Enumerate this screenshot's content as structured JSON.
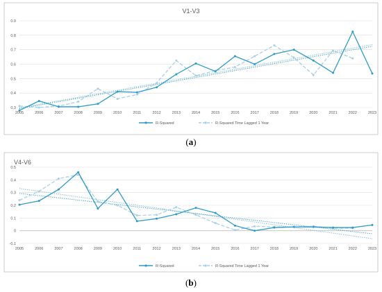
{
  "colors": {
    "series_solid": "#2e9ac8",
    "series_dashed": "#a9cfe6",
    "grid": "#d9d9d9",
    "frame": "#bfbfbf",
    "text": "#595959"
  },
  "charts": [
    {
      "caption": "a",
      "chart_data": {
        "type": "line",
        "title": "V1-V3",
        "x": [
          "2005",
          "2006",
          "2007",
          "2008",
          "2009",
          "2010",
          "2011",
          "2012",
          "2013",
          "2014",
          "2015",
          "2016",
          "2017",
          "2018",
          "2019",
          "2020",
          "2021",
          "2022",
          "2023"
        ],
        "ylim": [
          0.3,
          0.9
        ],
        "yticks": [
          0.3,
          0.4,
          0.5,
          0.6,
          0.7,
          0.8,
          0.9
        ],
        "ytick_labels": [
          "0.3",
          "0.4",
          "0.5",
          "0.6",
          "0.7",
          "0.8",
          "0.9"
        ],
        "grid": true,
        "legend_position": "bottom",
        "trendlines": "linear (dotted) for each series",
        "series": [
          {
            "name": "R-Squared",
            "style": "solid-markers",
            "values": [
              0.28,
              0.345,
              0.305,
              0.305,
              0.325,
              0.41,
              0.405,
              0.44,
              0.53,
              0.605,
              0.55,
              0.655,
              0.6,
              0.67,
              0.7,
              0.625,
              0.54,
              0.825,
              0.535
            ]
          },
          {
            "name": "R-Squared Time Lagged 1 Year",
            "style": "dashed-markers",
            "values": [
              0.31,
              0.3,
              0.31,
              0.34,
              0.43,
              0.36,
              0.39,
              0.47,
              0.625,
              0.52,
              0.555,
              0.58,
              0.655,
              0.73,
              0.645,
              0.525,
              0.695,
              0.64,
              null
            ]
          }
        ]
      }
    },
    {
      "caption": "b",
      "chart_data": {
        "type": "line",
        "title": "V4-V6",
        "x": [
          "2005",
          "2006",
          "2007",
          "2008",
          "2009",
          "2010",
          "2011",
          "2012",
          "2013",
          "2014",
          "2015",
          "2016",
          "2017",
          "2018",
          "2019",
          "2020",
          "2021",
          "2022",
          "2023"
        ],
        "ylim": [
          -0.1,
          0.5
        ],
        "yticks": [
          -0.1,
          0,
          0.1,
          0.2,
          0.3,
          0.4,
          0.5
        ],
        "ytick_labels": [
          "-0.1",
          "0",
          "0.1",
          "0.2",
          "0.3",
          "0.4",
          "0.5"
        ],
        "grid": true,
        "legend_position": "bottom",
        "trendlines": "linear (dotted) for each series",
        "series": [
          {
            "name": "R-Squared",
            "style": "solid-markers",
            "values": [
              0.205,
              0.235,
              0.325,
              0.46,
              0.175,
              0.325,
              0.075,
              0.095,
              0.13,
              0.18,
              0.14,
              0.04,
              0.0,
              0.025,
              0.03,
              0.03,
              0.025,
              0.025,
              0.045
            ]
          },
          {
            "name": "R-Squared Time Lagged 1 Year",
            "style": "dashed-markers",
            "values": [
              0.24,
              0.31,
              0.41,
              0.44,
              0.23,
              0.2,
              0.12,
              0.125,
              0.185,
              0.125,
              0.06,
              0.005,
              0.035,
              0.03,
              0.03,
              0.035,
              0.02,
              0.02,
              null
            ]
          }
        ]
      }
    }
  ]
}
